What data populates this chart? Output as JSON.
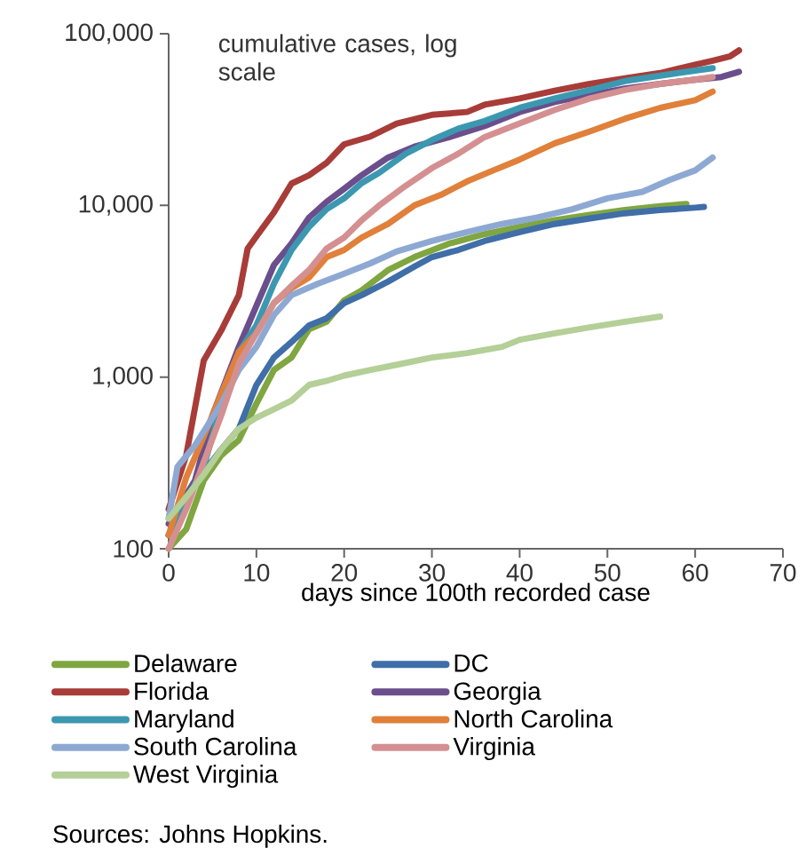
{
  "chart_data": {
    "type": "line",
    "log": "y",
    "xlabel": "days since 100th recorded case",
    "xlim": [
      0,
      70
    ],
    "ylim": [
      100,
      100000
    ],
    "xticks": [
      0,
      10,
      20,
      30,
      40,
      50,
      60,
      70
    ],
    "yticks": [
      {
        "value": 100,
        "label": "100"
      },
      {
        "value": 1000,
        "label": "1,000"
      },
      {
        "value": 10000,
        "label": "10,000"
      },
      {
        "value": 100000,
        "label": "100,000"
      }
    ],
    "grid": false,
    "legend": "bottom",
    "annotations": [
      "cumulative cases, log scale",
      "Sources: Johns Hopkins."
    ],
    "series": [
      {
        "name": "Delaware",
        "color": "#7fa640",
        "x": [
          0,
          2,
          4,
          6,
          8,
          10,
          12,
          14,
          16,
          18,
          20,
          22,
          25,
          28,
          32,
          36,
          40,
          44,
          48,
          52,
          56,
          59
        ],
        "values": [
          100,
          130,
          250,
          350,
          430,
          700,
          1100,
          1300,
          1900,
          2100,
          2800,
          3200,
          4200,
          5000,
          6000,
          6800,
          7500,
          8200,
          8800,
          9400,
          9900,
          10200
        ]
      },
      {
        "name": "DC",
        "color": "#3f6ea8",
        "x": [
          0,
          2,
          4,
          6,
          8,
          10,
          12,
          14,
          16,
          18,
          20,
          22,
          25,
          28,
          30,
          33,
          36,
          40,
          44,
          48,
          52,
          56,
          60,
          61
        ],
        "values": [
          120,
          200,
          280,
          380,
          500,
          900,
          1300,
          1600,
          2000,
          2200,
          2700,
          3000,
          3600,
          4400,
          5000,
          5500,
          6200,
          7000,
          7800,
          8400,
          9000,
          9400,
          9700,
          9800
        ]
      },
      {
        "name": "Florida",
        "color": "#a83c38",
        "x": [
          0,
          2,
          4,
          6,
          8,
          9,
          10,
          12,
          14,
          16,
          18,
          20,
          23,
          26,
          30,
          34,
          36,
          40,
          44,
          48,
          52,
          56,
          60,
          62,
          64,
          65
        ],
        "values": [
          170,
          350,
          1250,
          1870,
          3000,
          5600,
          6600,
          9100,
          13400,
          15000,
          17700,
          22700,
          25200,
          30000,
          33700,
          35000,
          38600,
          42000,
          46600,
          51000,
          55000,
          59000,
          66000,
          69700,
          74000,
          80000
        ]
      },
      {
        "name": "Georgia",
        "color": "#6b4e8c",
        "x": [
          0,
          3,
          5,
          8,
          10,
          12,
          14,
          16,
          18,
          20,
          22,
          25,
          28,
          32,
          36,
          40,
          44,
          48,
          52,
          56,
          60,
          63,
          65
        ],
        "values": [
          140,
          250,
          600,
          1500,
          2600,
          4500,
          6000,
          8500,
          10500,
          12500,
          15000,
          19000,
          22000,
          25000,
          29000,
          35000,
          40000,
          44000,
          48000,
          51000,
          54000,
          56000,
          60000
        ]
      },
      {
        "name": "Maryland",
        "color": "#3c98b0",
        "x": [
          0,
          4,
          6,
          8,
          10,
          12,
          14,
          16,
          18,
          20,
          22,
          24,
          27,
          30,
          33,
          36,
          40,
          44,
          48,
          52,
          56,
          60,
          62
        ],
        "values": [
          120,
          300,
          700,
          1400,
          2000,
          3500,
          5500,
          7500,
          9500,
          11000,
          13500,
          15500,
          20000,
          24000,
          28000,
          31000,
          37000,
          42000,
          47000,
          53000,
          57000,
          61000,
          63000
        ]
      },
      {
        "name": "North Carolina",
        "color": "#e0803a",
        "x": [
          0,
          2,
          4,
          6,
          8,
          10,
          12,
          14,
          16,
          18,
          20,
          22,
          25,
          28,
          31,
          34,
          37,
          40,
          44,
          48,
          52,
          56,
          60,
          62
        ],
        "values": [
          120,
          260,
          450,
          800,
          1400,
          1800,
          2700,
          3300,
          3800,
          5000,
          5500,
          6500,
          7800,
          10000,
          11500,
          13800,
          16000,
          18500,
          23000,
          27000,
          32000,
          37000,
          41000,
          46000
        ]
      },
      {
        "name": "South Carolina",
        "color": "#8da9d3",
        "x": [
          0,
          1,
          3,
          6,
          8,
          10,
          12,
          14,
          17,
          20,
          23,
          26,
          30,
          34,
          38,
          42,
          46,
          50,
          54,
          57,
          60,
          62
        ],
        "values": [
          150,
          300,
          400,
          700,
          1100,
          1500,
          2300,
          3000,
          3500,
          4000,
          4600,
          5400,
          6200,
          7000,
          7800,
          8500,
          9500,
          11000,
          12000,
          14000,
          16000,
          19000
        ]
      },
      {
        "name": "Virginia",
        "color": "#d49091",
        "x": [
          0,
          2,
          4,
          6,
          8,
          10,
          12,
          14,
          16,
          18,
          20,
          22,
          24,
          27,
          30,
          33,
          36,
          40,
          44,
          48,
          52,
          56,
          60,
          62
        ],
        "values": [
          100,
          170,
          320,
          600,
          1200,
          1800,
          2700,
          3400,
          4200,
          5600,
          6500,
          8200,
          10000,
          13000,
          16500,
          20000,
          25000,
          30000,
          36000,
          42000,
          47000,
          51000,
          54000,
          56000
        ]
      },
      {
        "name": "West Virginia",
        "color": "#b4cf97",
        "x": [
          0,
          2,
          4,
          6,
          8,
          10,
          12,
          14,
          16,
          18,
          20,
          23,
          26,
          30,
          34,
          38,
          40,
          44,
          48,
          52,
          56
        ],
        "values": [
          150,
          200,
          270,
          380,
          500,
          580,
          650,
          730,
          900,
          950,
          1020,
          1100,
          1180,
          1300,
          1380,
          1500,
          1650,
          1800,
          1950,
          2100,
          2250
        ]
      }
    ]
  }
}
